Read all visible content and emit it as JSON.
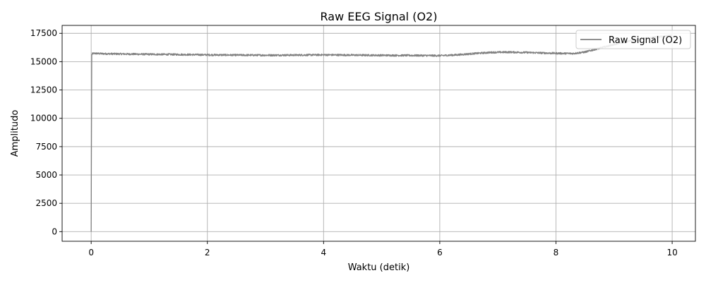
{
  "chart_data": {
    "type": "line",
    "title": "Raw EEG Signal (O2)",
    "xlabel": "Waktu (detik)",
    "ylabel": "Amplitudo",
    "xlim": [
      -0.5,
      10.4
    ],
    "ylim": [
      -850,
      18200
    ],
    "xticks": [
      0,
      2,
      4,
      6,
      8,
      10
    ],
    "yticks": [
      0,
      2500,
      5000,
      7500,
      10000,
      12500,
      15000,
      17500
    ],
    "xtick_labels": [
      "0",
      "2",
      "4",
      "6",
      "8",
      "10"
    ],
    "ytick_labels": [
      "0",
      "2500",
      "5000",
      "7500",
      "10000",
      "12500",
      "15000",
      "17500"
    ],
    "grid": true,
    "legend_position": "top-right",
    "series": [
      {
        "name": "Raw Signal (O2)",
        "color": "#808080",
        "noise_amplitude": 80,
        "x": [
          0,
          0.005,
          0.01,
          0.02,
          0.05,
          0.2,
          0.5,
          1.0,
          1.5,
          2.0,
          2.5,
          3.0,
          3.5,
          4.0,
          4.5,
          5.0,
          5.5,
          6.0,
          6.3,
          6.6,
          6.9,
          7.2,
          7.5,
          7.8,
          8.1,
          8.3,
          8.5,
          8.8,
          9.1,
          9.4,
          9.7,
          9.99
        ],
        "y": [
          0,
          8000,
          15600,
          15700,
          15730,
          15700,
          15680,
          15650,
          15630,
          15600,
          15580,
          15570,
          15580,
          15600,
          15580,
          15560,
          15550,
          15530,
          15600,
          15720,
          15820,
          15840,
          15810,
          15760,
          15730,
          15720,
          15850,
          16250,
          16650,
          16950,
          17150,
          17300
        ]
      }
    ]
  }
}
